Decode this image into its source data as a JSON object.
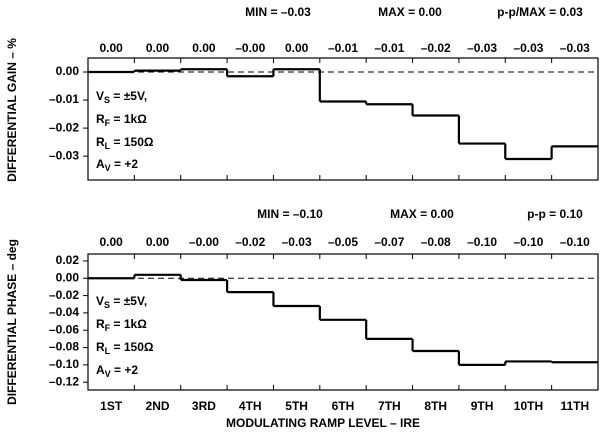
{
  "chart_data": [
    {
      "type": "step",
      "y_label": "DIFFERENTIAL GAIN – %",
      "annotations": [
        "MIN = –0.03",
        "MAX = 0.00",
        "p-p/MAX = 0.03"
      ],
      "values": [
        0.0,
        0.0005,
        0.001,
        -0.0015,
        0.001,
        -0.0105,
        -0.0115,
        -0.0155,
        -0.0255,
        -0.031,
        -0.0265
      ],
      "value_labels": [
        "0.00",
        "0.00",
        "0.00",
        "–0.00",
        "0.00",
        "–0.01",
        "–0.01",
        "–0.02",
        "–0.03",
        "–0.03",
        "–0.03"
      ],
      "conditions": [
        {
          "symbol": "V",
          "sub": "S",
          "text": " = ±5V,"
        },
        {
          "symbol": "R",
          "sub": "F",
          "text": " = 1kΩ"
        },
        {
          "symbol": "R",
          "sub": "L",
          "text": " = 150Ω"
        },
        {
          "symbol": "A",
          "sub": "V",
          "text": " = +2"
        }
      ],
      "ylim": [
        -0.0385,
        0.005
      ],
      "yticks": [
        {
          "value": 0,
          "label": "0.00"
        },
        {
          "value": -0.01,
          "label": "–0.01"
        },
        {
          "value": -0.02,
          "label": "–0.02"
        },
        {
          "value": -0.03,
          "label": "–0.03"
        }
      ],
      "color": "#000000"
    },
    {
      "type": "step",
      "y_label": "DIFFERENTIAL PHASE – deg",
      "x_label": "MODULATING RAMP LEVEL – IRE",
      "annotations": [
        "MIN = –0.10",
        "MAX = 0.00",
        "p-p = 0.10"
      ],
      "categories": [
        "1ST",
        "2ND",
        "3RD",
        "4TH",
        "5TH",
        "6TH",
        "7TH",
        "8TH",
        "9TH",
        "10TH",
        "11TH"
      ],
      "values": [
        0.0,
        0.004,
        -0.002,
        -0.016,
        -0.032,
        -0.048,
        -0.07,
        -0.084,
        -0.1,
        -0.096,
        -0.097
      ],
      "value_labels": [
        "0.00",
        "0.00",
        "–0.00",
        "–0.02",
        "–0.03",
        "–0.05",
        "–0.07",
        "–0.08",
        "–0.10",
        "–0.10",
        "–0.10"
      ],
      "conditions": [
        {
          "symbol": "V",
          "sub": "S",
          "text": " = ±5V,"
        },
        {
          "symbol": "R",
          "sub": "F",
          "text": " = 1kΩ"
        },
        {
          "symbol": "R",
          "sub": "L",
          "text": " = 150Ω"
        },
        {
          "symbol": "A",
          "sub": "V",
          "text": " = +2"
        }
      ],
      "ylim": [
        -0.129,
        0.028
      ],
      "yticks": [
        {
          "value": 0.02,
          "label": "0.02"
        },
        {
          "value": 0,
          "label": "0.00"
        },
        {
          "value": -0.02,
          "label": "–0.02"
        },
        {
          "value": -0.04,
          "label": "–0.04"
        },
        {
          "value": -0.06,
          "label": "–0.06"
        },
        {
          "value": -0.08,
          "label": "–0.08"
        },
        {
          "value": -0.1,
          "label": "–0.10"
        },
        {
          "value": -0.12,
          "label": "–0.12"
        }
      ],
      "color": "#000000"
    }
  ]
}
